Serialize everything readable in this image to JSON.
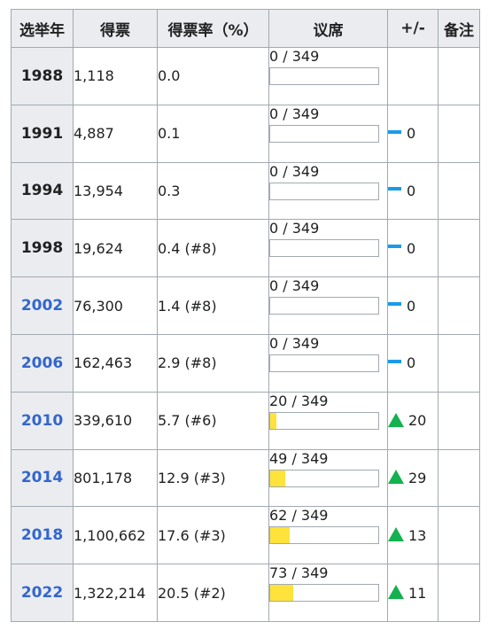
{
  "headers": [
    "选举年",
    "得票",
    "得票率（%）",
    "议席",
    "+/-",
    "备注"
  ],
  "accent": {
    "link": "#3366cc",
    "seat_fill": "#ffe33a",
    "dash": "#1b9ae9",
    "up": "#14b14f"
  },
  "rows": [
    {
      "year": "1988",
      "link": false,
      "votes": "1,118",
      "pct": "0.0",
      "seats": "0 / 349",
      "seat_fraction": 0.0,
      "change": "",
      "change_icon": ""
    },
    {
      "year": "1991",
      "link": false,
      "votes": "4,887",
      "pct": "0.1",
      "seats": "0 / 349",
      "seat_fraction": 0.0,
      "change": "0",
      "change_icon": "dash"
    },
    {
      "year": "1994",
      "link": false,
      "votes": "13,954",
      "pct": "0.3",
      "seats": "0 / 349",
      "seat_fraction": 0.0,
      "change": "0",
      "change_icon": "dash"
    },
    {
      "year": "1998",
      "link": false,
      "votes": "19,624",
      "pct": "0.4 (#8)",
      "seats": "0 / 349",
      "seat_fraction": 0.0,
      "change": "0",
      "change_icon": "dash"
    },
    {
      "year": "2002",
      "link": true,
      "votes": "76,300",
      "pct": "1.4 (#8)",
      "seats": "0 / 349",
      "seat_fraction": 0.0,
      "change": "0",
      "change_icon": "dash"
    },
    {
      "year": "2006",
      "link": true,
      "votes": "162,463",
      "pct": "2.9 (#8)",
      "seats": "0 / 349",
      "seat_fraction": 0.0,
      "change": "0",
      "change_icon": "dash"
    },
    {
      "year": "2010",
      "link": true,
      "votes": "339,610",
      "pct": "5.7 (#6)",
      "seats": "20 / 349",
      "seat_fraction": 0.0573,
      "change": "20",
      "change_icon": "up"
    },
    {
      "year": "2014",
      "link": true,
      "votes": "801,178",
      "pct": "12.9 (#3)",
      "seats": "49 / 349",
      "seat_fraction": 0.1404,
      "change": "29",
      "change_icon": "up"
    },
    {
      "year": "2018",
      "link": true,
      "votes": "1,100,662",
      "pct": "17.6 (#3)",
      "seats": "62 / 349",
      "seat_fraction": 0.1777,
      "change": "13",
      "change_icon": "up"
    },
    {
      "year": "2022",
      "link": true,
      "votes": "1,322,214",
      "pct": "20.5 (#2)",
      "seats": "73 / 349",
      "seat_fraction": 0.2092,
      "change": "11",
      "change_icon": "up"
    }
  ]
}
